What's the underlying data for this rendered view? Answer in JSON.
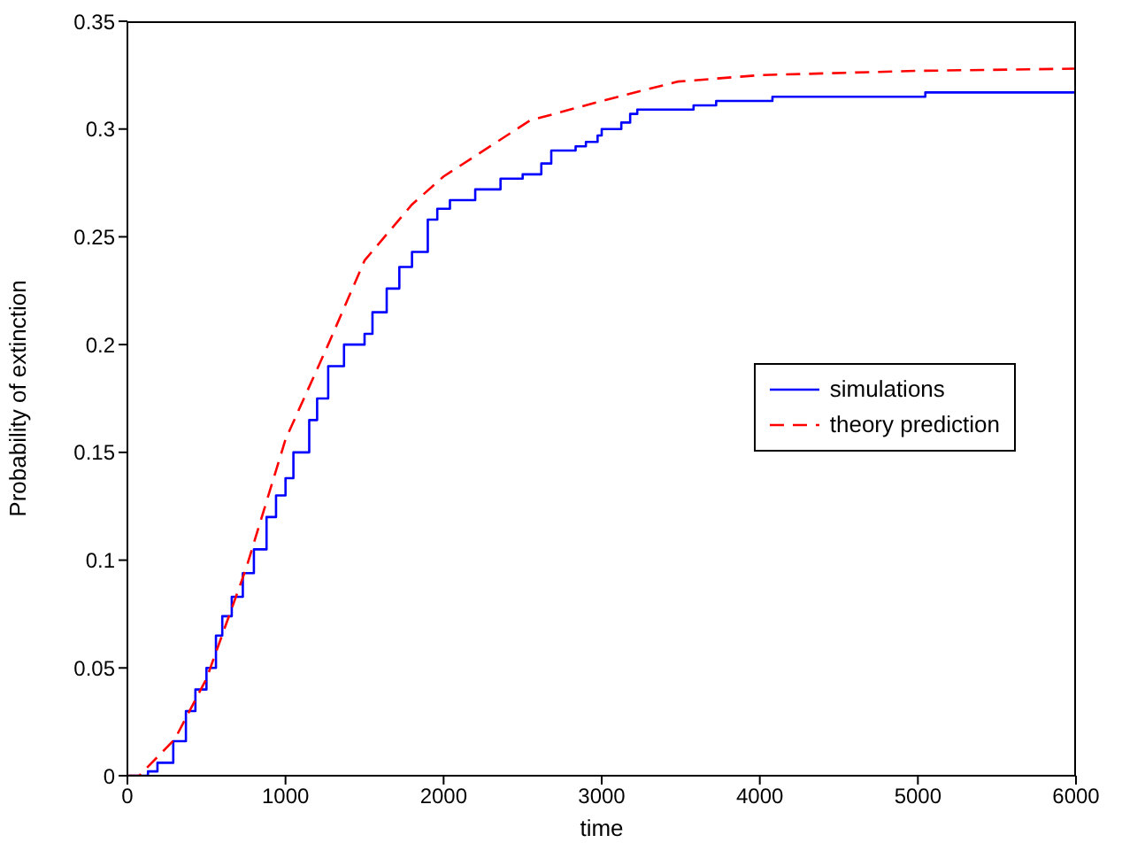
{
  "chart_data": {
    "type": "line",
    "xlabel": "time",
    "ylabel": "Probability of extinction",
    "xlim": [
      0,
      6000
    ],
    "xticks": [
      0,
      1000,
      2000,
      3000,
      4000,
      5000,
      6000
    ],
    "ylim": [
      0,
      0.35
    ],
    "yticks": [
      0,
      0.05,
      0.1,
      0.15,
      0.2,
      0.25,
      0.3,
      0.35
    ],
    "legend": "right",
    "grid": false,
    "series": [
      {
        "name": "simulations",
        "type": "step",
        "color": "#0000ff",
        "line_style": "solid",
        "x": [
          0,
          130,
          190,
          290,
          370,
          430,
          500,
          560,
          600,
          660,
          730,
          800,
          880,
          940,
          1000,
          1050,
          1150,
          1200,
          1270,
          1370,
          1500,
          1550,
          1640,
          1720,
          1800,
          1900,
          1960,
          2040,
          2200,
          2360,
          2500,
          2618,
          2681,
          2835,
          2900,
          2974,
          3000,
          3124,
          3180,
          3225,
          3581,
          3724,
          4080,
          5047,
          6000
        ],
        "values": [
          0,
          0.002,
          0.006,
          0.016,
          0.03,
          0.04,
          0.05,
          0.065,
          0.074,
          0.083,
          0.094,
          0.105,
          0.12,
          0.13,
          0.138,
          0.15,
          0.165,
          0.175,
          0.19,
          0.2,
          0.205,
          0.215,
          0.226,
          0.236,
          0.243,
          0.258,
          0.263,
          0.267,
          0.272,
          0.277,
          0.279,
          0.284,
          0.29,
          0.292,
          0.294,
          0.297,
          0.3,
          0.303,
          0.307,
          0.309,
          0.311,
          0.313,
          0.315,
          0.317,
          0.317
        ]
      },
      {
        "name": "theory prediction",
        "type": "line",
        "color": "#ff0000",
        "line_style": "dashed",
        "x": [
          0,
          75,
          300,
          500,
          750,
          1000,
          1270,
          1500,
          1800,
          2000,
          2547,
          3000,
          3480,
          4000,
          5000,
          6000
        ],
        "values": [
          0,
          0,
          0.017,
          0.045,
          0.096,
          0.156,
          0.2,
          0.239,
          0.265,
          0.278,
          0.304,
          0.313,
          0.322,
          0.325,
          0.327,
          0.328
        ]
      }
    ]
  }
}
